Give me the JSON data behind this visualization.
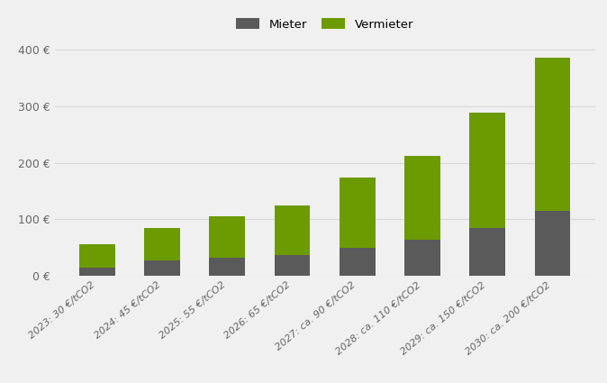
{
  "categories": [
    "2023: 30 €/tCO2",
    "2024: 45 €/tCO2",
    "2025: 55 €/tCO2",
    "2026: 65 €/tCO2",
    "2027: ca. 90 €/tCO2",
    "2028: ca. 110 €/tCO2",
    "2029: ca. 150 €/tCO2",
    "2030: ca. 200 €/tCO2"
  ],
  "mieter": [
    15,
    27,
    32,
    37,
    50,
    63,
    85,
    115
  ],
  "vermieter": [
    40,
    57,
    73,
    88,
    123,
    149,
    204,
    270
  ],
  "mieter_color": "#5a5a5a",
  "vermieter_color": "#6b9b00",
  "background_color": "#f0f0f0",
  "grid_color": "#d8d8d8",
  "ylim": [
    0,
    420
  ],
  "yticks": [
    0,
    100,
    200,
    300,
    400
  ],
  "ytick_labels": [
    "0 €",
    "100 €",
    "200 €",
    "300 €",
    "400 €"
  ],
  "legend_mieter": "Mieter",
  "legend_vermieter": "Vermieter",
  "bar_width": 0.55
}
